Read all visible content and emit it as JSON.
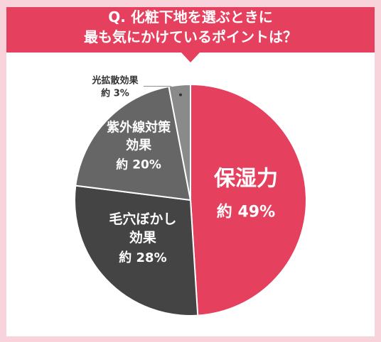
{
  "title_lines": [
    "Q. 化粧下地を選ぶときに",
    "最も気にかけているポイントは？"
  ],
  "colors": {
    "background": "#f9d3db",
    "banner": "#e6405f",
    "slice_moisture": "#e6405f",
    "slice_pores": "#444444",
    "slice_uv": "#666666",
    "slice_light": "#8a8a8a"
  },
  "chart_data": {
    "type": "pie",
    "title": "Q. 化粧下地を選ぶときに最も気にかけているポイントは？",
    "start": "top, clockwise",
    "slices": [
      {
        "label": "保湿力",
        "value": 49,
        "value_text": "約 49%"
      },
      {
        "label": "毛穴ぼかし効果",
        "value": 28,
        "value_text": "約 28%"
      },
      {
        "label": "紫外線対策効果",
        "value": 20,
        "value_text": "約 20%"
      },
      {
        "label": "光拡散効果",
        "value": 3,
        "value_text": "約 3%"
      }
    ]
  }
}
